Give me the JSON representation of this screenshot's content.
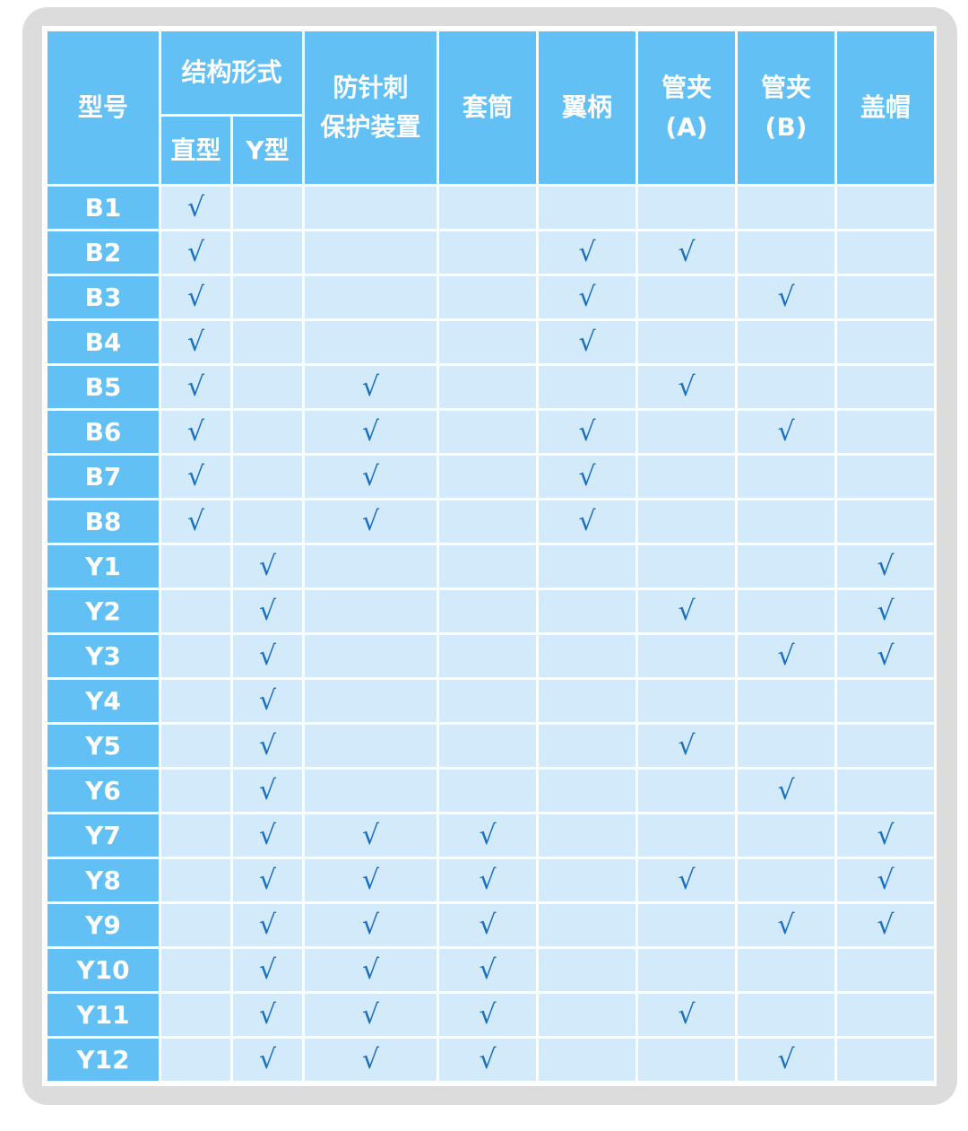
{
  "colors": {
    "header": "#62c0f4",
    "cell": "#d3eafb",
    "check": "#1a6fbf",
    "frame": "#dcdcdc"
  },
  "check_mark": "√",
  "headers": {
    "model": "型号",
    "structure": "结构形式",
    "structure_sub": [
      "直型",
      "Y型"
    ],
    "columns": [
      "防针刺\n保护装置",
      "套筒",
      "翼柄",
      "管夹\n(A)",
      "管夹\n(B)",
      "盖帽"
    ]
  },
  "column_keys": [
    "直型",
    "Y型",
    "防针刺保护装置",
    "套筒",
    "翼柄",
    "管夹(A)",
    "管夹(B)",
    "盖帽"
  ],
  "rows": [
    {
      "model": "B1",
      "checks": [
        1,
        0,
        0,
        0,
        0,
        0,
        0,
        0
      ]
    },
    {
      "model": "B2",
      "checks": [
        1,
        0,
        0,
        0,
        1,
        1,
        0,
        0
      ]
    },
    {
      "model": "B3",
      "checks": [
        1,
        0,
        0,
        0,
        1,
        0,
        1,
        0
      ]
    },
    {
      "model": "B4",
      "checks": [
        1,
        0,
        0,
        0,
        1,
        0,
        0,
        0
      ]
    },
    {
      "model": "B5",
      "checks": [
        1,
        0,
        1,
        0,
        0,
        1,
        0,
        0
      ]
    },
    {
      "model": "B6",
      "checks": [
        1,
        0,
        1,
        0,
        1,
        0,
        1,
        0
      ]
    },
    {
      "model": "B7",
      "checks": [
        1,
        0,
        1,
        0,
        1,
        0,
        0,
        0
      ]
    },
    {
      "model": "B8",
      "checks": [
        1,
        0,
        1,
        0,
        1,
        0,
        0,
        0
      ]
    },
    {
      "model": "Y1",
      "checks": [
        0,
        1,
        0,
        0,
        0,
        0,
        0,
        1
      ]
    },
    {
      "model": "Y2",
      "checks": [
        0,
        1,
        0,
        0,
        0,
        1,
        0,
        1
      ]
    },
    {
      "model": "Y3",
      "checks": [
        0,
        1,
        0,
        0,
        0,
        0,
        1,
        1
      ]
    },
    {
      "model": "Y4",
      "checks": [
        0,
        1,
        0,
        0,
        0,
        0,
        0,
        0
      ]
    },
    {
      "model": "Y5",
      "checks": [
        0,
        1,
        0,
        0,
        0,
        1,
        0,
        0
      ]
    },
    {
      "model": "Y6",
      "checks": [
        0,
        1,
        0,
        0,
        0,
        0,
        1,
        0
      ]
    },
    {
      "model": "Y7",
      "checks": [
        0,
        1,
        1,
        1,
        0,
        0,
        0,
        1
      ]
    },
    {
      "model": "Y8",
      "checks": [
        0,
        1,
        1,
        1,
        0,
        1,
        0,
        1
      ]
    },
    {
      "model": "Y9",
      "checks": [
        0,
        1,
        1,
        1,
        0,
        0,
        1,
        1
      ]
    },
    {
      "model": "Y10",
      "checks": [
        0,
        1,
        1,
        1,
        0,
        0,
        0,
        0
      ]
    },
    {
      "model": "Y11",
      "checks": [
        0,
        1,
        1,
        1,
        0,
        1,
        0,
        0
      ]
    },
    {
      "model": "Y12",
      "checks": [
        0,
        1,
        1,
        1,
        0,
        0,
        1,
        0
      ]
    }
  ]
}
